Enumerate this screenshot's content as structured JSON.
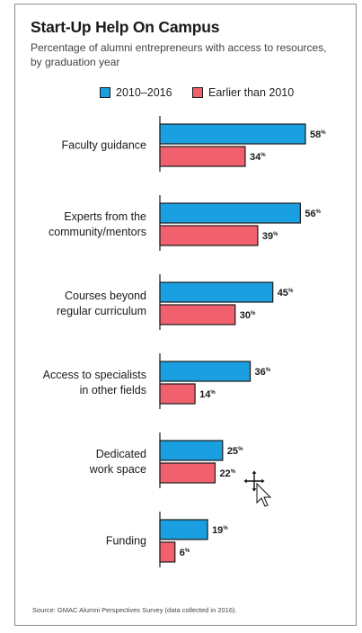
{
  "chart_data": {
    "type": "bar",
    "orientation": "horizontal",
    "title": "Start-Up Help On Campus",
    "subtitle": "Percentage of alumni entrepreneurs with access to resources, by graduation year",
    "categories": [
      [
        "Faculty guidance"
      ],
      [
        "Experts from the",
        "community/mentors"
      ],
      [
        "Courses beyond",
        "regular curriculum"
      ],
      [
        "Access to specialists",
        "in other fields"
      ],
      [
        "Dedicated",
        "work space"
      ],
      [
        "Funding"
      ]
    ],
    "series": [
      {
        "name": "2010–2016",
        "color": "#1a9fe0",
        "values": [
          58,
          56,
          45,
          36,
          25,
          19
        ]
      },
      {
        "name": "Earlier than 2010",
        "color": "#f0606d",
        "values": [
          34,
          39,
          30,
          14,
          22,
          6
        ]
      }
    ],
    "value_suffix": "%",
    "xlim": [
      0,
      60
    ],
    "grid": false,
    "legend": "top",
    "source": "Source: GMAC Alumni Perspectives Survey (data collected in 2016)."
  }
}
